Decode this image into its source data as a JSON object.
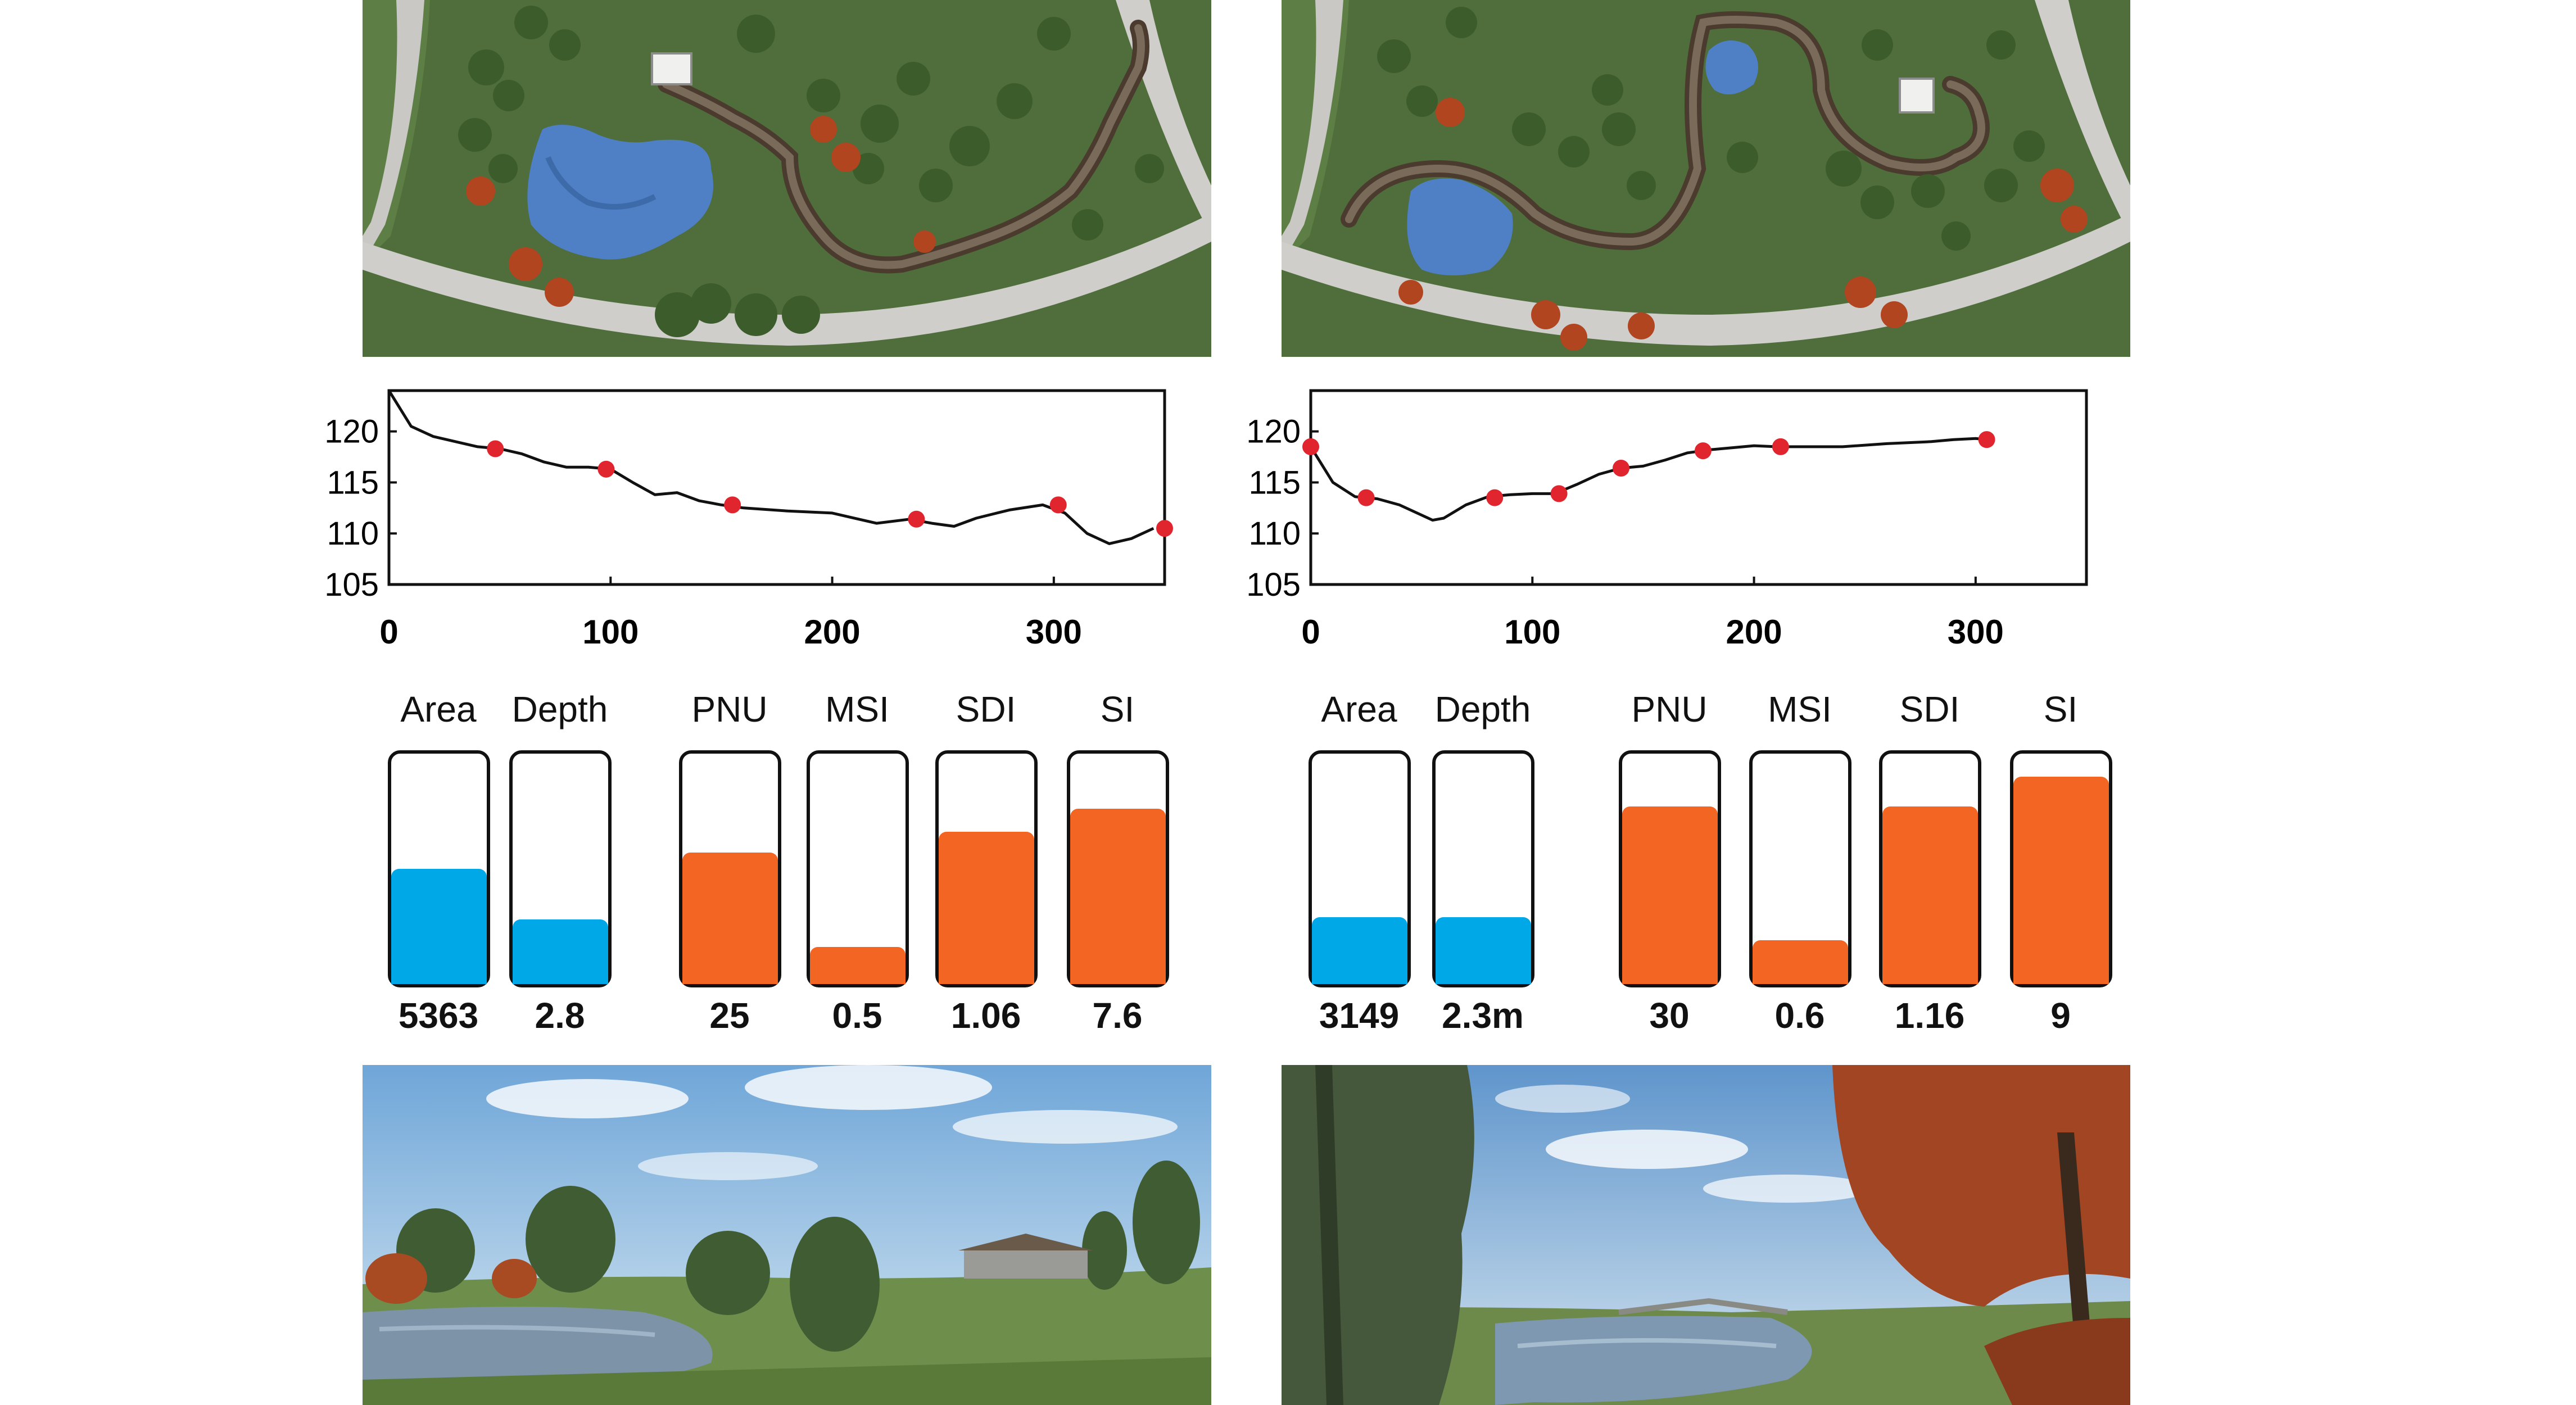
{
  "colors": {
    "water_fill": "#00a8e8",
    "metric_fill": "#f26522",
    "marker": "#e0252f",
    "line": "#111111"
  },
  "images": {
    "aerial_left": "aerial-park-map-pond-boardwalk",
    "aerial_right": "aerial-park-map-two-ponds-boardwalk",
    "street_left": "pond-view-with-willows-and-pavilion",
    "street_right": "pond-view-with-willow-and-autumn-tree"
  },
  "chart_data": [
    {
      "type": "line",
      "title": "",
      "xlabel": "",
      "ylabel": "",
      "xlim": [
        0,
        350
      ],
      "ylim": [
        105,
        124
      ],
      "xticks": [
        "0",
        "100",
        "200",
        "300"
      ],
      "yticks": [
        "105",
        "110",
        "115",
        "120"
      ],
      "x": [
        0,
        10,
        20,
        40,
        50,
        60,
        70,
        80,
        90,
        100,
        110,
        120,
        130,
        140,
        150,
        160,
        180,
        200,
        220,
        235,
        245,
        255,
        265,
        280,
        295,
        305,
        315,
        325,
        335,
        345
      ],
      "y": [
        124,
        120.5,
        119.5,
        118.5,
        118.3,
        117.8,
        117,
        116.5,
        116.5,
        116.3,
        115,
        113.8,
        114,
        113.2,
        112.8,
        112.5,
        112.2,
        112,
        111,
        111.4,
        111,
        110.7,
        111.5,
        112.3,
        112.8,
        112,
        110,
        109,
        109.5,
        110.5
      ],
      "markers": [
        {
          "x": 48,
          "y": 118.3
        },
        {
          "x": 98,
          "y": 116.3
        },
        {
          "x": 155,
          "y": 112.8
        },
        {
          "x": 238,
          "y": 111.4
        },
        {
          "x": 302,
          "y": 112.8
        },
        {
          "x": 350,
          "y": 110.5
        }
      ],
      "metrics": [
        {
          "label": "Area",
          "value": "5363",
          "fill": 0.5,
          "kind": "water"
        },
        {
          "label": "Depth",
          "value": "2.8",
          "fill": 0.28,
          "kind": "water"
        },
        {
          "label": "PNU",
          "value": "25",
          "fill": 0.57,
          "kind": "metric"
        },
        {
          "label": "MSI",
          "value": "0.5",
          "fill": 0.16,
          "kind": "metric"
        },
        {
          "label": "SDI",
          "value": "1.06",
          "fill": 0.66,
          "kind": "metric"
        },
        {
          "label": "SI",
          "value": "7.6",
          "fill": 0.76,
          "kind": "metric"
        }
      ]
    },
    {
      "type": "line",
      "title": "",
      "xlabel": "",
      "ylabel": "",
      "xlim": [
        0,
        350
      ],
      "ylim": [
        105,
        124
      ],
      "xticks": [
        "0",
        "100",
        "200",
        "300"
      ],
      "yticks": [
        "105",
        "110",
        "115",
        "120"
      ],
      "x": [
        0,
        10,
        20,
        30,
        40,
        50,
        55,
        60,
        70,
        80,
        90,
        100,
        110,
        120,
        130,
        140,
        150,
        160,
        170,
        180,
        190,
        200,
        210,
        220,
        240,
        260,
        280,
        290,
        300,
        305
      ],
      "y": [
        118.5,
        115,
        113.6,
        113.4,
        112.8,
        111.8,
        111.3,
        111.5,
        112.8,
        113.6,
        113.8,
        113.9,
        113.9,
        114.8,
        115.8,
        116.4,
        116.6,
        117.2,
        117.9,
        118.2,
        118.4,
        118.6,
        118.5,
        118.5,
        118.5,
        118.8,
        119,
        119.2,
        119.3,
        119.2
      ],
      "markers": [
        {
          "x": 0,
          "y": 118.5
        },
        {
          "x": 25,
          "y": 113.5
        },
        {
          "x": 83,
          "y": 113.5
        },
        {
          "x": 112,
          "y": 113.9
        },
        {
          "x": 140,
          "y": 116.4
        },
        {
          "x": 177,
          "y": 118.1
        },
        {
          "x": 212,
          "y": 118.5
        },
        {
          "x": 305,
          "y": 119.2
        }
      ],
      "metrics": [
        {
          "label": "Area",
          "value": "3149",
          "fill": 0.29,
          "kind": "water"
        },
        {
          "label": "Depth",
          "value": "2.3m",
          "fill": 0.29,
          "kind": "water"
        },
        {
          "label": "PNU",
          "value": "30",
          "fill": 0.77,
          "kind": "metric"
        },
        {
          "label": "MSI",
          "value": "0.6",
          "fill": 0.19,
          "kind": "metric"
        },
        {
          "label": "SDI",
          "value": "1.16",
          "fill": 0.77,
          "kind": "metric"
        },
        {
          "label": "SI",
          "value": "9",
          "fill": 0.9,
          "kind": "metric"
        }
      ]
    }
  ]
}
